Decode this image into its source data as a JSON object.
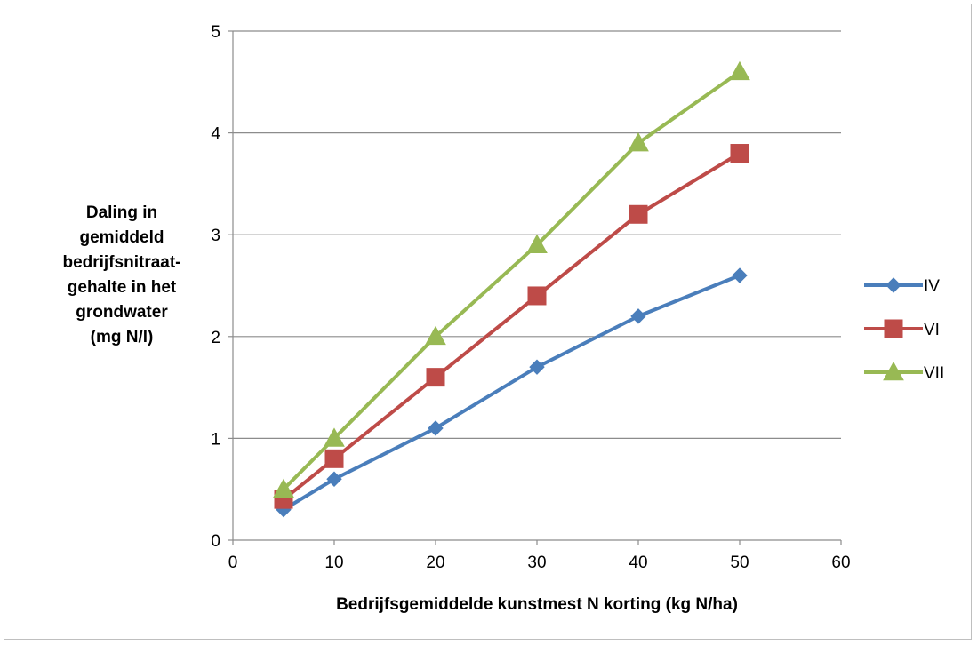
{
  "chart_data": {
    "type": "line",
    "title": "",
    "xlabel": "Bedrijfsgemiddelde kunstmest N korting (kg N/ha)",
    "ylabel": "Daling in\ngemiddeld\nbedrijfsnitraat-\ngehalte in het\ngrondwater\n(mg N/l)",
    "xlim": [
      0,
      60
    ],
    "ylim": [
      0,
      5
    ],
    "xticks": [
      0,
      10,
      20,
      30,
      40,
      50,
      60
    ],
    "yticks": [
      0,
      1,
      2,
      3,
      4,
      5
    ],
    "x": [
      5,
      10,
      20,
      30,
      40,
      50
    ],
    "grid": "horizontal",
    "legend_position": "right",
    "series": [
      {
        "name": "IV",
        "values": [
          0.3,
          0.6,
          1.1,
          1.7,
          2.2,
          2.6
        ],
        "color": "#4a7ebb",
        "marker": "diamond"
      },
      {
        "name": "VI",
        "values": [
          0.4,
          0.8,
          1.6,
          2.4,
          3.2,
          3.8
        ],
        "color": "#be4b48",
        "marker": "square"
      },
      {
        "name": "VII",
        "values": [
          0.5,
          1.0,
          2.0,
          2.9,
          3.9,
          4.6
        ],
        "color": "#98b954",
        "marker": "triangle"
      }
    ]
  }
}
